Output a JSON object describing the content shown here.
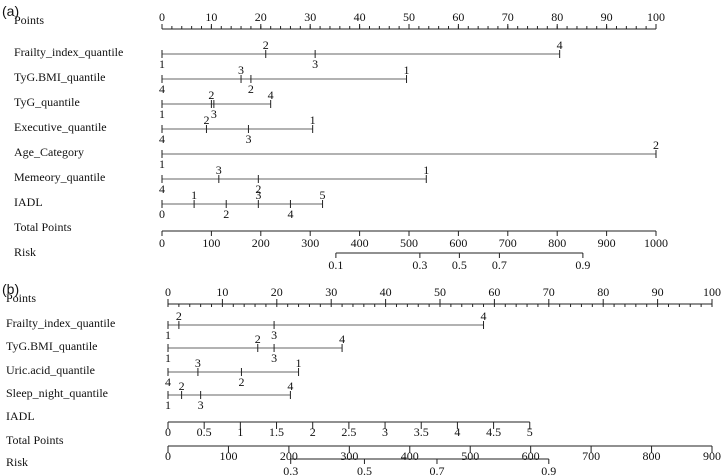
{
  "chart_data": [
    {
      "type": "nomogram",
      "panel": "(a)",
      "rows": [
        {
          "label": "Points",
          "kind": "axis",
          "min": 0,
          "max": 100,
          "ticks": [
            0,
            10,
            20,
            30,
            40,
            50,
            60,
            70,
            80,
            90,
            100
          ],
          "tick_labels": [
            "0",
            "10",
            "20",
            "30",
            "40",
            "50",
            "60",
            "70",
            "80",
            "90",
            "100"
          ]
        },
        {
          "label": "Frailty_index_quantile",
          "kind": "factor",
          "levels": [
            {
              "level": "1",
              "points": 0
            },
            {
              "level": "2",
              "points": 21
            },
            {
              "level": "3",
              "points": 31
            },
            {
              "level": "4",
              "points": 80.5
            }
          ]
        },
        {
          "label": "TyG.BMI_quantile",
          "kind": "factor",
          "levels": [
            {
              "level": "4",
              "points": 0
            },
            {
              "level": "3",
              "points": 16
            },
            {
              "level": "2",
              "points": 18
            },
            {
              "level": "1",
              "points": 49.5
            }
          ]
        },
        {
          "label": "TyG_quantile",
          "kind": "factor",
          "levels": [
            {
              "level": "1",
              "points": 0
            },
            {
              "level": "2",
              "points": 10
            },
            {
              "level": "3",
              "points": 10.5
            },
            {
              "level": "4",
              "points": 22
            }
          ]
        },
        {
          "label": "Executive_quantile",
          "kind": "factor",
          "levels": [
            {
              "level": "4",
              "points": 0
            },
            {
              "level": "2",
              "points": 9
            },
            {
              "level": "3",
              "points": 17.5
            },
            {
              "level": "1",
              "points": 30.5
            }
          ]
        },
        {
          "label": "Age_Category",
          "kind": "factor",
          "levels": [
            {
              "level": "1",
              "points": 0
            },
            {
              "level": "2",
              "points": 100
            }
          ]
        },
        {
          "label": "Memeory_quantile",
          "kind": "factor",
          "levels": [
            {
              "level": "4",
              "points": 0
            },
            {
              "level": "3",
              "points": 11.5
            },
            {
              "level": "2",
              "points": 19.5
            },
            {
              "level": "1",
              "points": 53.5
            }
          ]
        },
        {
          "label": "IADL",
          "kind": "factor",
          "levels": [
            {
              "level": "0",
              "points": 0
            },
            {
              "level": "1",
              "points": 6.5
            },
            {
              "level": "2",
              "points": 13
            },
            {
              "level": "3",
              "points": 19.5
            },
            {
              "level": "4",
              "points": 26
            },
            {
              "level": "5",
              "points": 32.5
            }
          ]
        },
        {
          "label": "Total Points",
          "kind": "axis",
          "min": 0,
          "max": 1000,
          "ticks": [
            0,
            100,
            200,
            300,
            400,
            500,
            600,
            700,
            800,
            900,
            1000
          ],
          "tick_labels": [
            "0",
            "100",
            "200",
            "300",
            "400",
            "500",
            "600",
            "700",
            "800",
            "900",
            "1000"
          ]
        },
        {
          "label": "Risk",
          "kind": "risk",
          "min": 0.1,
          "max": 0.9,
          "ticks": [
            {
              "label": "0.1",
              "total": 352
            },
            {
              "label": "0.3",
              "total": 522
            },
            {
              "label": "0.5",
              "total": 602
            },
            {
              "label": "0.7",
              "total": 683
            },
            {
              "label": "0.9",
              "total": 852
            }
          ]
        }
      ]
    },
    {
      "type": "nomogram",
      "panel": "(b)",
      "rows": [
        {
          "label": "Points",
          "kind": "axis",
          "min": 0,
          "max": 100,
          "ticks": [
            0,
            10,
            20,
            30,
            40,
            50,
            60,
            70,
            80,
            90,
            100
          ],
          "tick_labels": [
            "0",
            "10",
            "20",
            "30",
            "40",
            "50",
            "60",
            "70",
            "80",
            "90",
            "100"
          ]
        },
        {
          "label": "Frailty_index_quantile",
          "kind": "factor",
          "levels": [
            {
              "level": "1",
              "points": 0
            },
            {
              "level": "2",
              "points": 2
            },
            {
              "level": "3",
              "points": 19.5
            },
            {
              "level": "4",
              "points": 58
            }
          ]
        },
        {
          "label": "TyG.BMI_quantile",
          "kind": "factor",
          "levels": [
            {
              "level": "1",
              "points": 0
            },
            {
              "level": "2",
              "points": 16.5
            },
            {
              "level": "3",
              "points": 19.5
            },
            {
              "level": "4",
              "points": 32
            }
          ]
        },
        {
          "label": "Uric.acid_quantile",
          "kind": "factor",
          "levels": [
            {
              "level": "4",
              "points": 0
            },
            {
              "level": "3",
              "points": 5.5
            },
            {
              "level": "2",
              "points": 13.5
            },
            {
              "level": "1",
              "points": 24
            }
          ]
        },
        {
          "label": "Sleep_night_quantile",
          "kind": "factor",
          "levels": [
            {
              "level": "1",
              "points": 0
            },
            {
              "level": "2",
              "points": 2.5
            },
            {
              "level": "3",
              "points": 6
            },
            {
              "level": "4",
              "points": 22.5
            }
          ]
        },
        {
          "label": "IADL",
          "kind": "axis",
          "min": 0,
          "max": 5,
          "ticks": [
            0,
            0.5,
            1,
            1.5,
            2,
            2.5,
            3,
            3.5,
            4,
            4.5,
            5
          ],
          "tick_labels": [
            "0",
            "0.5",
            "1",
            "1.5",
            "2",
            "2.5",
            "3",
            "3.5",
            "4",
            "4.5",
            "5"
          ],
          "points_range": [
            0,
            66.5
          ]
        },
        {
          "label": "Total Points",
          "kind": "axis",
          "min": 0,
          "max": 900,
          "ticks": [
            0,
            100,
            200,
            300,
            400,
            500,
            600,
            700,
            800,
            900
          ],
          "tick_labels": [
            "0",
            "100",
            "200",
            "300",
            "400",
            "500",
            "600",
            "700",
            "800",
            "900"
          ]
        },
        {
          "label": "Risk",
          "kind": "risk",
          "min": 0.3,
          "max": 0.9,
          "ticks": [
            {
              "label": "0.3",
              "total": 203
            },
            {
              "label": "0.5",
              "total": 325
            },
            {
              "label": "0.7",
              "total": 445
            },
            {
              "label": "0.9",
              "total": 630
            }
          ]
        }
      ]
    }
  ]
}
